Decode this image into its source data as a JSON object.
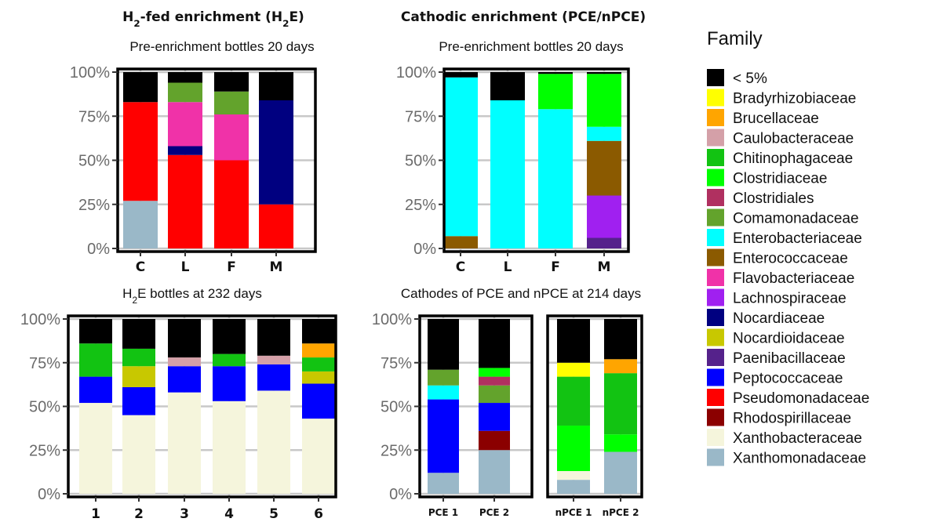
{
  "chart_data": {
    "type": "bar",
    "stacked": true,
    "y_unit": "%",
    "ylim": [
      0,
      100
    ],
    "yticks": [
      "0%",
      "25%",
      "50%",
      "75%",
      "100%"
    ],
    "legend": {
      "title": "Family",
      "placement": "right",
      "entries": [
        {
          "name": "< 5%",
          "color": "#000000"
        },
        {
          "name": "Bradyrhizobiaceae",
          "color": "#FFFF00"
        },
        {
          "name": "Brucellaceae",
          "color": "#FFA500"
        },
        {
          "name": "Caulobacteraceae",
          "color": "#D4A0A8"
        },
        {
          "name": "Chitinophagaceae",
          "color": "#12C312"
        },
        {
          "name": "Clostridiaceae",
          "color": "#00FF00"
        },
        {
          "name": "Clostridiales",
          "color": "#B03060"
        },
        {
          "name": "Comamonadaceae",
          "color": "#63A32C"
        },
        {
          "name": "Enterobacteriaceae",
          "color": "#00FFFF"
        },
        {
          "name": "Enterococcaceae",
          "color": "#8B5A00"
        },
        {
          "name": "Flavobacteriaceae",
          "color": "#F032A8"
        },
        {
          "name": "Lachnospiraceae",
          "color": "#A020F0"
        },
        {
          "name": "Nocardiaceae",
          "color": "#000080"
        },
        {
          "name": "Nocardioidaceae",
          "color": "#C8C800"
        },
        {
          "name": "Paenibacillaceae",
          "color": "#55228B"
        },
        {
          "name": "Peptococcaceae",
          "color": "#0000FF"
        },
        {
          "name": "Pseudomonadaceae",
          "color": "#FF0000"
        },
        {
          "name": "Rhodospirillaceae",
          "color": "#8B0000"
        },
        {
          "name": "Xanthobacteraceae",
          "color": "#F5F5DC"
        },
        {
          "name": "Xanthomonadaceae",
          "color": "#9AB8C8"
        }
      ]
    },
    "panels": [
      {
        "id": "a",
        "title_parts": [
          "H",
          "2",
          "-fed enrichment (H",
          "2",
          "E)"
        ],
        "subtitle_parts": [
          "Pre-enrichment bottles 20 days"
        ],
        "categories": [
          "C",
          "L",
          "F",
          "M"
        ],
        "bars": [
          [
            [
              "Xanthomonadaceae",
              27
            ],
            [
              "Pseudomonadaceae",
              56
            ],
            [
              "< 5%",
              17
            ]
          ],
          [
            [
              "Pseudomonadaceae",
              53
            ],
            [
              "Nocardiaceae",
              5
            ],
            [
              "Flavobacteriaceae",
              25
            ],
            [
              "Comamonadaceae",
              11
            ],
            [
              "< 5%",
              6
            ]
          ],
          [
            [
              "Pseudomonadaceae",
              50
            ],
            [
              "Flavobacteriaceae",
              26
            ],
            [
              "Comamonadaceae",
              13
            ],
            [
              "< 5%",
              11
            ]
          ],
          [
            [
              "Pseudomonadaceae",
              25
            ],
            [
              "Nocardiaceae",
              59
            ],
            [
              "< 5%",
              16
            ]
          ]
        ]
      },
      {
        "id": "b",
        "title_parts": [
          "Cathodic enrichment (PCE/nPCE)"
        ],
        "subtitle_parts": [
          "Pre-enrichment bottles 20 days"
        ],
        "categories": [
          "C",
          "L",
          "F",
          "M"
        ],
        "bars": [
          [
            [
              "Enterococcaceae",
              7
            ],
            [
              "Enterobacteriaceae",
              90
            ],
            [
              "< 5%",
              3
            ]
          ],
          [
            [
              "Enterobacteriaceae",
              84
            ],
            [
              "< 5%",
              16
            ]
          ],
          [
            [
              "Enterobacteriaceae",
              79
            ],
            [
              "Clostridiaceae",
              20
            ],
            [
              "< 5%",
              1
            ]
          ],
          [
            [
              "Paenibacillaceae",
              6
            ],
            [
              "Lachnospiraceae",
              24
            ],
            [
              "Enterococcaceae",
              31
            ],
            [
              "Enterobacteriaceae",
              8
            ],
            [
              "Clostridiaceae",
              30
            ],
            [
              "< 5%",
              1
            ]
          ]
        ]
      },
      {
        "id": "c",
        "title_parts": [],
        "subtitle_parts": [
          "H",
          "2",
          "E bottles at 232 days"
        ],
        "categories": [
          "1",
          "2",
          "3",
          "4",
          "5",
          "6"
        ],
        "bars": [
          [
            [
              "Xanthobacteraceae",
              52
            ],
            [
              "Peptococcaceae",
              15
            ],
            [
              "Chitinophagaceae",
              19
            ],
            [
              "< 5%",
              14
            ]
          ],
          [
            [
              "Xanthobacteraceae",
              45
            ],
            [
              "Peptococcaceae",
              16
            ],
            [
              "Nocardioidaceae",
              12
            ],
            [
              "Chitinophagaceae",
              10
            ],
            [
              "< 5%",
              17
            ]
          ],
          [
            [
              "Xanthobacteraceae",
              58
            ],
            [
              "Peptococcaceae",
              15
            ],
            [
              "Caulobacteraceae",
              5
            ],
            [
              "< 5%",
              22
            ]
          ],
          [
            [
              "Xanthobacteraceae",
              53
            ],
            [
              "Peptococcaceae",
              20
            ],
            [
              "Chitinophagaceae",
              7
            ],
            [
              "< 5%",
              20
            ]
          ],
          [
            [
              "Xanthobacteraceae",
              59
            ],
            [
              "Peptococcaceae",
              15
            ],
            [
              "Caulobacteraceae",
              5
            ],
            [
              "< 5%",
              21
            ]
          ],
          [
            [
              "Xanthobacteraceae",
              43
            ],
            [
              "Peptococcaceae",
              20
            ],
            [
              "Nocardioidaceae",
              7
            ],
            [
              "Chitinophagaceae",
              8
            ],
            [
              "Brucellaceae",
              8
            ],
            [
              "< 5%",
              14
            ]
          ]
        ]
      },
      {
        "id": "d",
        "title_parts": [],
        "subtitle_parts": [
          "Cathodes of PCE and nPCE at 214 days"
        ],
        "categories": [
          "PCE 1",
          "PCE 2"
        ],
        "bars": [
          [
            [
              "Xanthomonadaceae",
              12
            ],
            [
              "Peptococcaceae",
              42
            ],
            [
              "Enterobacteriaceae",
              8
            ],
            [
              "Comamonadaceae",
              9
            ],
            [
              "< 5%",
              29
            ]
          ],
          [
            [
              "Xanthomonadaceae",
              25
            ],
            [
              "Rhodospirillaceae",
              11
            ],
            [
              "Peptococcaceae",
              16
            ],
            [
              "Comamonadaceae",
              10
            ],
            [
              "Clostridiales",
              5
            ],
            [
              "Clostridiaceae",
              5
            ],
            [
              "< 5%",
              28
            ]
          ]
        ]
      },
      {
        "id": "e",
        "title_parts": [],
        "subtitle_parts": [],
        "categories": [
          "nPCE 1",
          "nPCE 2"
        ],
        "bars": [
          [
            [
              "Xanthomonadaceae",
              8
            ],
            [
              "Xanthobacteraceae",
              5
            ],
            [
              "Clostridiaceae",
              26
            ],
            [
              "Chitinophagaceae",
              28
            ],
            [
              "Bradyrhizobiaceae",
              8
            ],
            [
              "< 5%",
              25
            ]
          ],
          [
            [
              "Xanthomonadaceae",
              24
            ],
            [
              "Clostridiaceae",
              10
            ],
            [
              "Chitinophagaceae",
              35
            ],
            [
              "Brucellaceae",
              8
            ],
            [
              "< 5%",
              23
            ]
          ]
        ]
      }
    ]
  }
}
